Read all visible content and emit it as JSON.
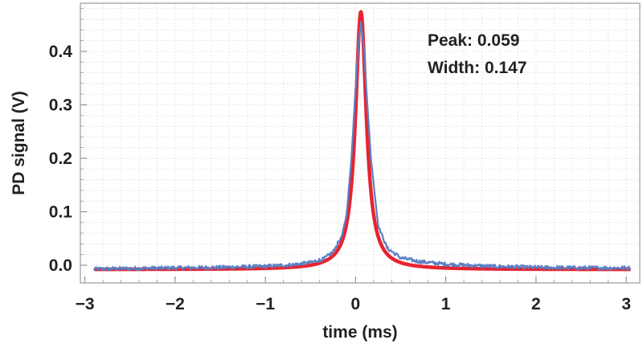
{
  "chart_data": {
    "type": "line",
    "title": "",
    "xlabel": "time (ms)",
    "ylabel": "PD signal (V)",
    "xlim": [
      -3.05,
      3.15
    ],
    "ylim": [
      -0.033,
      0.49
    ],
    "xticks": [
      -3,
      -2,
      -1,
      0,
      1,
      2,
      3
    ],
    "xtick_labels": [
      "−3",
      "−2",
      "−1",
      "0",
      "1",
      "2",
      "3"
    ],
    "yticks": [
      0.0,
      0.1,
      0.2,
      0.3,
      0.4
    ],
    "ytick_labels": [
      "0.0",
      "0.1",
      "0.2",
      "0.3",
      "0.4"
    ],
    "grid": true,
    "legend": "none",
    "series": [
      {
        "role": "measured",
        "color": "#5b7fc4",
        "x": [
          -2.9,
          -2.5,
          -2.0,
          -1.5,
          -1.0,
          -0.7,
          -0.5,
          -0.35,
          -0.25,
          -0.15,
          -0.1,
          -0.05,
          0.0,
          0.03,
          0.059,
          0.09,
          0.12,
          0.17,
          0.25,
          0.35,
          0.5,
          0.7,
          1.0,
          1.5,
          2.0,
          2.5,
          3.05
        ],
        "y": [
          -0.007,
          -0.006,
          -0.005,
          -0.004,
          -0.002,
          0.001,
          0.005,
          0.012,
          0.025,
          0.055,
          0.095,
          0.19,
          0.33,
          0.41,
          0.455,
          0.41,
          0.33,
          0.2,
          0.075,
          0.032,
          0.014,
          0.007,
          0.002,
          -0.002,
          -0.004,
          -0.005,
          -0.005
        ]
      },
      {
        "role": "fit",
        "color": "#e8232e",
        "peak": 0.059,
        "width": 0.147,
        "amplitude": 0.482,
        "offset": -0.008
      }
    ],
    "annotations": {
      "peak": "Peak: 0.059",
      "width": "Width: 0.147"
    }
  }
}
